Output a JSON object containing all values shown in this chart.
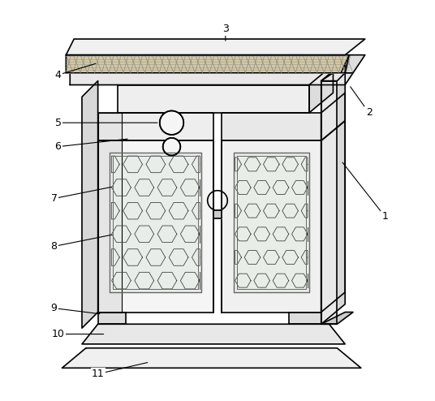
{
  "background_color": "#ffffff",
  "line_color": "#000000",
  "fig_width": 5.36,
  "fig_height": 4.94,
  "dpi": 100
}
